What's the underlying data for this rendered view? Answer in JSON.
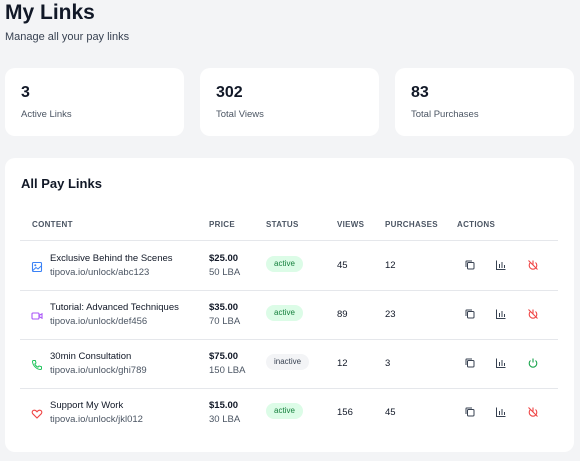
{
  "header": {
    "title": "My Links",
    "subtitle": "Manage all your pay links"
  },
  "stats": [
    {
      "value": "3",
      "label": "Active Links"
    },
    {
      "value": "302",
      "label": "Total Views"
    },
    {
      "value": "83",
      "label": "Total Purchases"
    }
  ],
  "table": {
    "title": "All Pay Links",
    "columns": [
      "CONTENT",
      "PRICE",
      "STATUS",
      "VIEWS",
      "PURCHASES",
      "ACTIONS"
    ],
    "rows": [
      {
        "icon": "image-icon",
        "title": "Exclusive Behind the Scenes",
        "url": "tipova.io/unlock/abc123",
        "price": "$25.00",
        "lba": "50 LBA",
        "status": "active",
        "views": "45",
        "purchases": "12",
        "toggle_icon": "power-off-icon"
      },
      {
        "icon": "video-icon",
        "title": "Tutorial: Advanced Techniques",
        "url": "tipova.io/unlock/def456",
        "price": "$35.00",
        "lba": "70 LBA",
        "status": "active",
        "views": "89",
        "purchases": "23",
        "toggle_icon": "power-off-icon"
      },
      {
        "icon": "phone-icon",
        "title": "30min Consultation",
        "url": "tipova.io/unlock/ghi789",
        "price": "$75.00",
        "lba": "150 LBA",
        "status": "inactive",
        "views": "12",
        "purchases": "3",
        "toggle_icon": "power-icon"
      },
      {
        "icon": "heart-icon",
        "title": "Support My Work",
        "url": "tipova.io/unlock/jkl012",
        "price": "$15.00",
        "lba": "30 LBA",
        "status": "active",
        "views": "156",
        "purchases": "45",
        "toggle_icon": "power-off-icon"
      }
    ]
  },
  "colors": {
    "active": "#15803d",
    "inactive": "#374151",
    "danger": "#ef4444",
    "success": "#16a34a"
  }
}
